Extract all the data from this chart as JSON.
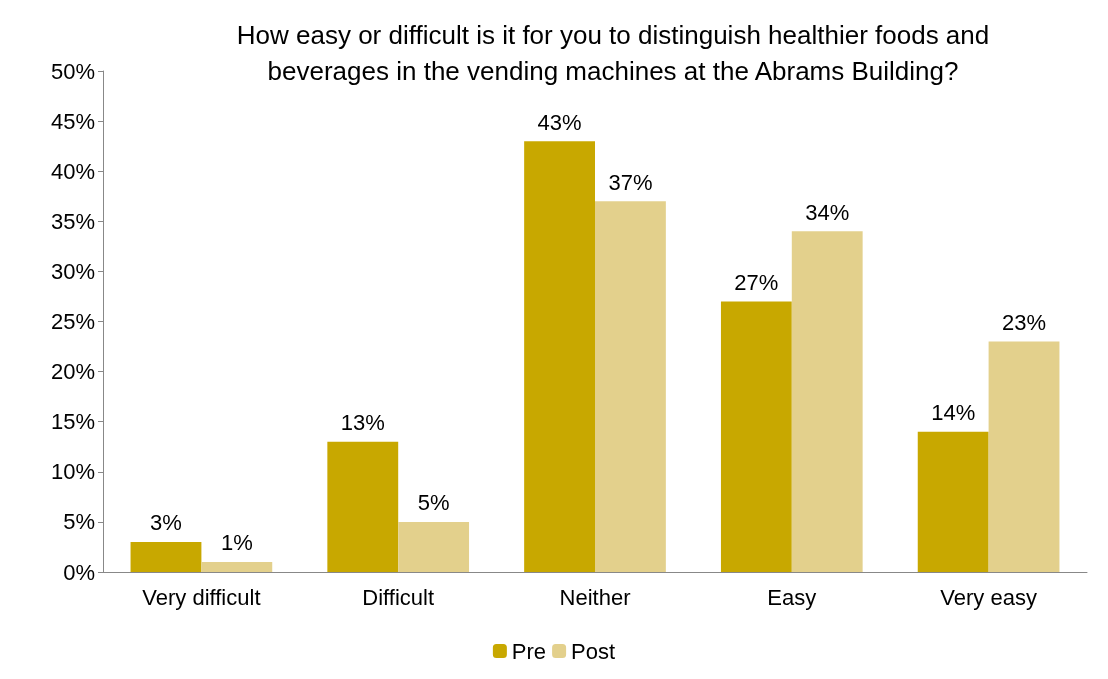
{
  "chart_data": {
    "type": "bar",
    "title": "How easy or difficult is it for you to distinguish healthier foods and\nbeverages in the vending machines at the Abrams Building?",
    "categories": [
      "Very difficult",
      "Difficult",
      "Neither",
      "Easy",
      "Very easy"
    ],
    "series": [
      {
        "name": "Pre",
        "color": "#c8a800",
        "values": [
          3,
          13,
          43,
          27,
          14
        ],
        "value_labels": [
          "3%",
          "13%",
          "43%",
          "27%",
          "14%"
        ]
      },
      {
        "name": "Post",
        "color": "#e3d08c",
        "values": [
          1,
          5,
          37,
          34,
          23
        ],
        "value_labels": [
          "1%",
          "5%",
          "37%",
          "34%",
          "23%"
        ]
      }
    ],
    "ylim": [
      0,
      50
    ],
    "yticks": [
      {
        "value": 0,
        "label": "0%"
      },
      {
        "value": 5,
        "label": "5%"
      },
      {
        "value": 10,
        "label": "10%"
      },
      {
        "value": 15,
        "label": "15%"
      },
      {
        "value": 20,
        "label": "20%"
      },
      {
        "value": 25,
        "label": "25%"
      },
      {
        "value": 30,
        "label": "30%"
      },
      {
        "value": 35,
        "label": "35%"
      },
      {
        "value": 40,
        "label": "40%"
      },
      {
        "value": 45,
        "label": "45%"
      },
      {
        "value": 50,
        "label": "50%"
      }
    ],
    "grid": false,
    "legend": "bottom"
  }
}
